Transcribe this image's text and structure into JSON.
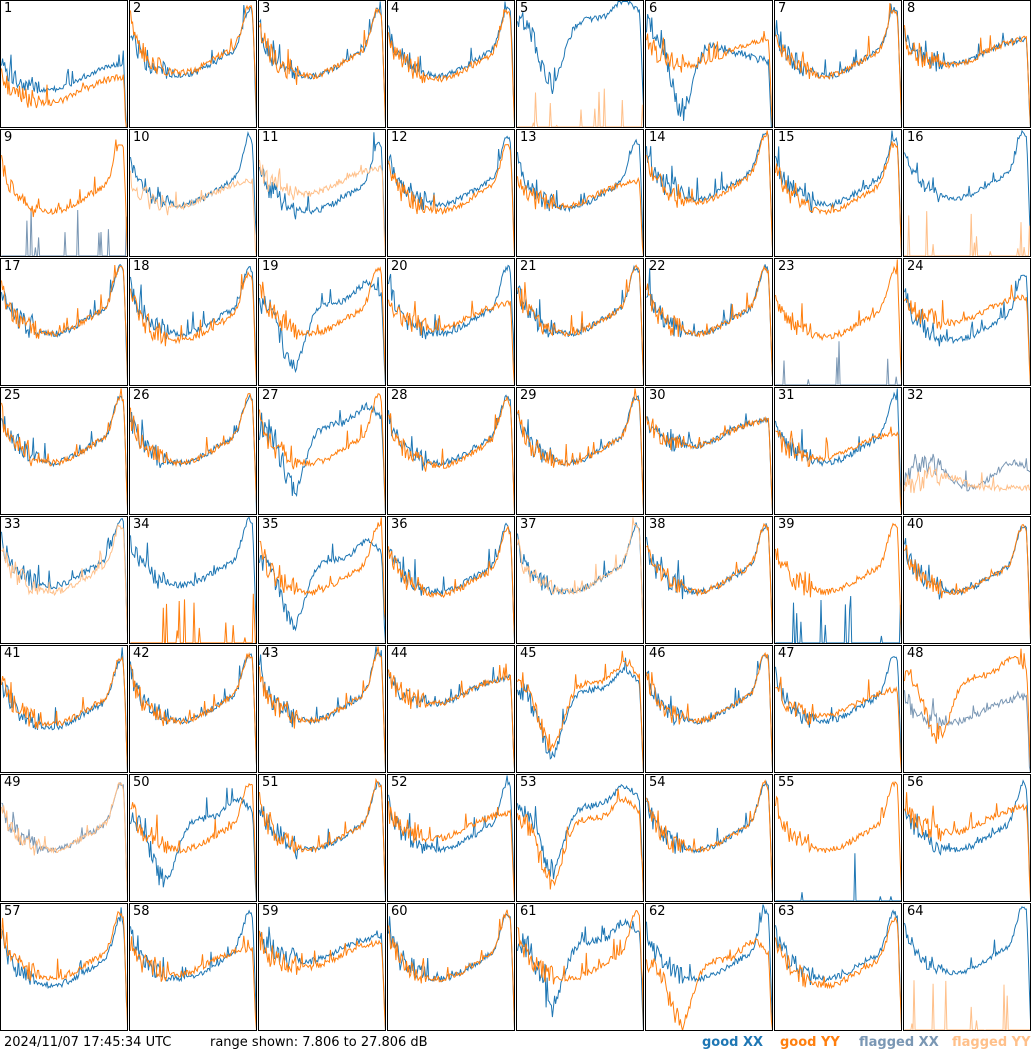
{
  "timestamp": "2024/11/07 17:45:34 UTC",
  "range_text": "range shown: 7.806 to 27.806 dB",
  "legend": [
    {
      "label": "good XX",
      "color": "#1f77b4"
    },
    {
      "label": "good YY",
      "color": "#ff7f0e"
    },
    {
      "label": "flagged XX",
      "color": "#7a97b4"
    },
    {
      "label": "flagged YY",
      "color": "#ffc08a"
    }
  ],
  "chart_data": {
    "type": "line",
    "title": "",
    "ylim": [
      7.806,
      27.806
    ],
    "y_unit": "dB",
    "grid": "8x8 small multiples",
    "series_names": [
      "good XX",
      "good YY",
      "flagged XX",
      "flagged YY"
    ],
    "panels": [
      {
        "n": "1",
        "xx": "good",
        "yy": "good",
        "xs": "A",
        "ys": "A",
        "xo": -6,
        "yo": -8,
        "xn": 0.9,
        "yn": 1.0
      },
      {
        "n": "2",
        "xx": "good",
        "yy": "good",
        "xs": "U",
        "ys": "U",
        "xo": 0,
        "yo": 0.5,
        "xn": 1,
        "yn": 1
      },
      {
        "n": "3",
        "xx": "good",
        "yy": "good",
        "xs": "U",
        "ys": "U",
        "xo": 0,
        "yo": 0,
        "xn": 1,
        "yn": 1
      },
      {
        "n": "4",
        "xx": "good",
        "yy": "good",
        "xs": "U",
        "ys": "U",
        "xo": 0,
        "yo": -0.5,
        "xn": 1,
        "yn": 1
      },
      {
        "n": "5",
        "xx": "good",
        "yy": "flagged",
        "xs": "V",
        "ys": "N",
        "xo": 2,
        "yo": 0,
        "xn": 1,
        "yn": 1
      },
      {
        "n": "6",
        "xx": "good",
        "yy": "good",
        "xs": "D",
        "ys": "A",
        "xo": -2,
        "yo": -2,
        "xn": 1.3,
        "yn": 1
      },
      {
        "n": "7",
        "xx": "good",
        "yy": "good",
        "xs": "U",
        "ys": "U",
        "xo": 0,
        "yo": 0,
        "xn": 1,
        "yn": 1
      },
      {
        "n": "8",
        "xx": "good",
        "yy": "good",
        "xs": "A",
        "ys": "A",
        "xo": -2,
        "yo": -2,
        "xn": 1,
        "yn": 1
      },
      {
        "n": "9",
        "xx": "flagged",
        "yy": "good",
        "xs": "N",
        "ys": "U",
        "xo": 0,
        "yo": -1,
        "xn": 1,
        "yn": 1
      },
      {
        "n": "10",
        "xx": "good",
        "yy": "flagged",
        "xs": "U",
        "ys": "A",
        "xo": 0,
        "yo": -4,
        "xn": 1,
        "yn": 1
      },
      {
        "n": "11",
        "xx": "good",
        "yy": "flagged",
        "xs": "U",
        "ys": "A",
        "xo": -1,
        "yo": -2,
        "xn": 1,
        "yn": 1
      },
      {
        "n": "12",
        "xx": "good",
        "yy": "good",
        "xs": "U",
        "ys": "U",
        "xo": 0,
        "yo": -1,
        "xn": 1,
        "yn": 1
      },
      {
        "n": "13",
        "xx": "good",
        "yy": "good",
        "xs": "U",
        "ys": "A",
        "xo": -0.5,
        "yo": -4,
        "xn": 1,
        "yn": 1
      },
      {
        "n": "14",
        "xx": "good",
        "yy": "good",
        "xs": "U",
        "ys": "U",
        "xo": 1,
        "yo": 0.5,
        "xn": 1,
        "yn": 1
      },
      {
        "n": "15",
        "xx": "good",
        "yy": "good",
        "xs": "U",
        "ys": "U",
        "xo": 0,
        "yo": -1,
        "xn": 1,
        "yn": 1
      },
      {
        "n": "16",
        "xx": "good",
        "yy": "flagged",
        "xs": "U",
        "ys": "N",
        "xo": 1,
        "yo": 0,
        "xn": 0.7,
        "yn": 1
      },
      {
        "n": "17",
        "xx": "good",
        "yy": "good",
        "xs": "U",
        "ys": "U",
        "xo": 0,
        "yo": 0,
        "xn": 1,
        "yn": 1
      },
      {
        "n": "18",
        "xx": "good",
        "yy": "good",
        "xs": "U",
        "ys": "U",
        "xo": 0,
        "yo": -1,
        "xn": 1,
        "yn": 1
      },
      {
        "n": "19",
        "xx": "good",
        "yy": "good",
        "xs": "V",
        "ys": "U",
        "xo": -2,
        "yo": 0,
        "xn": 1,
        "yn": 1
      },
      {
        "n": "20",
        "xx": "good",
        "yy": "good",
        "xs": "U",
        "ys": "A",
        "xo": 0,
        "yo": -3,
        "xn": 1,
        "yn": 1
      },
      {
        "n": "21",
        "xx": "good",
        "yy": "good",
        "xs": "U",
        "ys": "U",
        "xo": 0,
        "yo": 0,
        "xn": 1,
        "yn": 1
      },
      {
        "n": "22",
        "xx": "good",
        "yy": "good",
        "xs": "U",
        "ys": "U",
        "xo": 0,
        "yo": 0,
        "xn": 1,
        "yn": 1
      },
      {
        "n": "23",
        "xx": "flagged",
        "yy": "good",
        "xs": "N",
        "ys": "U",
        "xo": 0,
        "yo": -0.5,
        "xn": 1,
        "yn": 1
      },
      {
        "n": "24",
        "xx": "good",
        "yy": "good",
        "xs": "U",
        "ys": "A",
        "xo": -1,
        "yo": -2,
        "xn": 1,
        "yn": 1
      },
      {
        "n": "25",
        "xx": "good",
        "yy": "good",
        "xs": "U",
        "ys": "U",
        "xo": 0,
        "yo": 0,
        "xn": 1,
        "yn": 1
      },
      {
        "n": "26",
        "xx": "good",
        "yy": "good",
        "xs": "U",
        "ys": "U",
        "xo": 0,
        "yo": 0,
        "xn": 1,
        "yn": 1
      },
      {
        "n": "27",
        "xx": "good",
        "yy": "good",
        "xs": "V",
        "ys": "U",
        "xo": -1,
        "yo": 0,
        "xn": 1.3,
        "yn": 1
      },
      {
        "n": "28",
        "xx": "good",
        "yy": "good",
        "xs": "U",
        "ys": "U",
        "xo": 0,
        "yo": -0.5,
        "xn": 1,
        "yn": 1
      },
      {
        "n": "29",
        "xx": "good",
        "yy": "good",
        "xs": "U",
        "ys": "U",
        "xo": 0,
        "yo": 0,
        "xn": 1,
        "yn": 1
      },
      {
        "n": "30",
        "xx": "good",
        "yy": "good",
        "xs": "A",
        "ys": "A",
        "xo": -1,
        "yo": -1,
        "xn": 1,
        "yn": 1
      },
      {
        "n": "31",
        "xx": "good",
        "yy": "good",
        "xs": "U",
        "ys": "A",
        "xo": 0,
        "yo": -3,
        "xn": 1,
        "yn": 1
      },
      {
        "n": "32",
        "xx": "flagged",
        "yy": "flagged",
        "xs": "L",
        "ys": "Z",
        "xo": 0,
        "yo": 0,
        "xn": 1,
        "yn": 1
      },
      {
        "n": "33",
        "xx": "good",
        "yy": "flagged",
        "xs": "U",
        "ys": "U",
        "xo": 1,
        "yo": 0,
        "xn": 1,
        "yn": 1
      },
      {
        "n": "34",
        "xx": "good",
        "yy": "good",
        "xs": "U",
        "ys": "N",
        "xo": 1,
        "yo": 0,
        "xn": 1,
        "yn": 1
      },
      {
        "n": "35",
        "xx": "good",
        "yy": "good",
        "xs": "V",
        "ys": "U",
        "xo": -2,
        "yo": 0,
        "xn": 1,
        "yn": 1
      },
      {
        "n": "36",
        "xx": "good",
        "yy": "good",
        "xs": "U",
        "ys": "U",
        "xo": 0,
        "yo": -0.5,
        "xn": 1,
        "yn": 1
      },
      {
        "n": "37",
        "xx": "good",
        "yy": "flagged",
        "xs": "U",
        "ys": "U",
        "xo": 0,
        "yo": 0,
        "xn": 1,
        "yn": 1
      },
      {
        "n": "38",
        "xx": "good",
        "yy": "good",
        "xs": "U",
        "ys": "U",
        "xo": 0,
        "yo": 0,
        "xn": 1,
        "yn": 1
      },
      {
        "n": "39",
        "xx": "good",
        "yy": "good",
        "xs": "N",
        "ys": "U",
        "xo": 0,
        "yo": 0,
        "xn": 1,
        "yn": 1
      },
      {
        "n": "40",
        "xx": "good",
        "yy": "good",
        "xs": "U",
        "ys": "U",
        "xo": 0,
        "yo": 0,
        "xn": 1,
        "yn": 1
      },
      {
        "n": "41",
        "xx": "good",
        "yy": "good",
        "xs": "U",
        "ys": "U",
        "xo": -1,
        "yo": -0.5,
        "xn": 1,
        "yn": 1
      },
      {
        "n": "42",
        "xx": "good",
        "yy": "good",
        "xs": "U",
        "ys": "U",
        "xo": 0,
        "yo": 0,
        "xn": 1,
        "yn": 1
      },
      {
        "n": "43",
        "xx": "good",
        "yy": "good",
        "xs": "U",
        "ys": "U",
        "xo": 0,
        "yo": 0,
        "xn": 1,
        "yn": 1
      },
      {
        "n": "44",
        "xx": "good",
        "yy": "good",
        "xs": "A",
        "ys": "A",
        "xo": -1,
        "yo": -1,
        "xn": 1,
        "yn": 1
      },
      {
        "n": "45",
        "xx": "good",
        "yy": "good",
        "xs": "V",
        "ys": "V",
        "xo": -2,
        "yo": -1,
        "xn": 1,
        "yn": 1
      },
      {
        "n": "46",
        "xx": "good",
        "yy": "good",
        "xs": "U",
        "ys": "U",
        "xo": 0,
        "yo": 0,
        "xn": 1,
        "yn": 1
      },
      {
        "n": "47",
        "xx": "good",
        "yy": "good",
        "xs": "U",
        "ys": "A",
        "xo": 0,
        "yo": -3,
        "xn": 1,
        "yn": 1
      },
      {
        "n": "48",
        "xx": "flagged",
        "yy": "good",
        "xs": "A",
        "ys": "V",
        "xo": -4,
        "yo": 0,
        "xn": 1,
        "yn": 1
      },
      {
        "n": "49",
        "xx": "flagged",
        "yy": "flagged",
        "xs": "U",
        "ys": "U",
        "xo": 0,
        "yo": 0,
        "xn": 1,
        "yn": 1
      },
      {
        "n": "50",
        "xx": "good",
        "yy": "good",
        "xs": "V",
        "ys": "U",
        "xo": -2,
        "yo": 0,
        "xn": 1,
        "yn": 1
      },
      {
        "n": "51",
        "xx": "good",
        "yy": "good",
        "xs": "U",
        "ys": "U",
        "xo": 0,
        "yo": 0,
        "xn": 1,
        "yn": 1
      },
      {
        "n": "52",
        "xx": "good",
        "yy": "good",
        "xs": "U",
        "ys": "A",
        "xo": 0,
        "yo": -2,
        "xn": 1,
        "yn": 1
      },
      {
        "n": "53",
        "xx": "good",
        "yy": "good",
        "xs": "V",
        "ys": "V",
        "xo": 0,
        "yo": -2,
        "xn": 1,
        "yn": 1
      },
      {
        "n": "54",
        "xx": "good",
        "yy": "good",
        "xs": "U",
        "ys": "U",
        "xo": 0,
        "yo": 0,
        "xn": 1,
        "yn": 1
      },
      {
        "n": "55",
        "xx": "good",
        "yy": "good",
        "xs": "N",
        "ys": "U",
        "xo": 0,
        "yo": 0,
        "xn": 1,
        "yn": 1
      },
      {
        "n": "56",
        "xx": "good",
        "yy": "good",
        "xs": "U",
        "ys": "A",
        "xo": 0,
        "yo": -1,
        "xn": 1,
        "yn": 1
      },
      {
        "n": "57",
        "xx": "good",
        "yy": "good",
        "xs": "U",
        "ys": "U",
        "xo": -1,
        "yo": 0,
        "xn": 1,
        "yn": 1
      },
      {
        "n": "58",
        "xx": "good",
        "yy": "good",
        "xs": "U",
        "ys": "A",
        "xo": 0,
        "yo": -3,
        "xn": 1,
        "yn": 1
      },
      {
        "n": "59",
        "xx": "good",
        "yy": "good",
        "xs": "A",
        "ys": "A",
        "xo": -1,
        "yo": -2,
        "xn": 1,
        "yn": 1
      },
      {
        "n": "60",
        "xx": "good",
        "yy": "good",
        "xs": "U",
        "ys": "U",
        "xo": 0,
        "yo": 0,
        "xn": 1,
        "yn": 1
      },
      {
        "n": "61",
        "xx": "good",
        "yy": "good",
        "xs": "V",
        "ys": "U",
        "xo": -1,
        "yo": 0,
        "xn": 1.4,
        "yn": 1
      },
      {
        "n": "62",
        "xx": "good",
        "yy": "good",
        "xs": "U",
        "ys": "V",
        "xo": 0,
        "yo": -4,
        "xn": 1,
        "yn": 1
      },
      {
        "n": "63",
        "xx": "good",
        "yy": "good",
        "xs": "U",
        "ys": "U",
        "xo": 0,
        "yo": -1,
        "xn": 1,
        "yn": 1
      },
      {
        "n": "64",
        "xx": "good",
        "yy": "flagged",
        "xs": "U",
        "ys": "N",
        "xo": 1,
        "yo": 0,
        "xn": 0.8,
        "yn": 1
      }
    ]
  }
}
